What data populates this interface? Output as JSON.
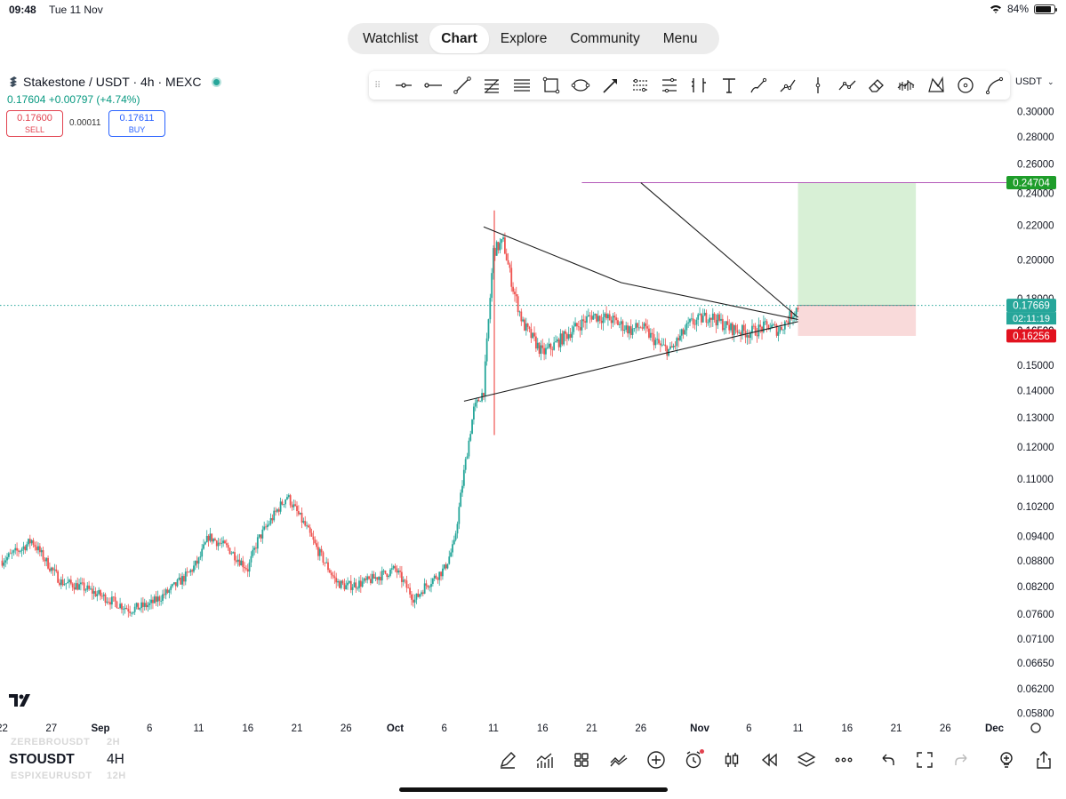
{
  "status": {
    "time": "09:48",
    "date": "Tue 11 Nov",
    "battery": "84%",
    "battery_fraction": 0.84
  },
  "nav": {
    "tabs": [
      "Watchlist",
      "Chart",
      "Explore",
      "Community",
      "Menu"
    ],
    "active": "Chart"
  },
  "symbol": {
    "title": "Stakestone / USDT · 4h · MEXC",
    "price_line": "0.17604 +0.00797 (+4.74%)",
    "sell_price": "0.17600",
    "sell_label": "SELL",
    "spread": "0.00011",
    "buy_price": "0.17611",
    "buy_label": "BUY"
  },
  "currency_selector": "USDT",
  "drawing_tools": [
    "cursor-dot",
    "horizontal-ray",
    "trend-line",
    "fib-retracement",
    "parallel-channel",
    "rectangle",
    "ellipse",
    "arrow-line",
    "date-range",
    "price-range",
    "long-position",
    "text",
    "brush",
    "path",
    "vertical-line",
    "polyline",
    "eraser",
    "volume-profile",
    "xabcd-pattern",
    "circle",
    "curve"
  ],
  "bottom": {
    "symbol": "STOUSDT",
    "timeframe": "4H",
    "ghost_top_symbol": "ZEREBROUSDT",
    "ghost_top_tf": "2H",
    "ghost_bottom_symbol": "ESPIXEURUSDT",
    "ghost_bottom_tf": "12H",
    "tools": [
      "pencil-icon",
      "indicators-icon",
      "layouts-icon",
      "compare-icon",
      "add-icon",
      "alert-icon",
      "candles-icon",
      "replay-icon",
      "layers-icon",
      "more-icon",
      "undo-icon",
      "fullscreen-icon",
      "redo-icon",
      "idea-icon",
      "share-icon"
    ]
  },
  "chart_data": {
    "type": "candlestick",
    "symbol": "Stakestone / USDT",
    "interval": "4h",
    "y_scale": "log",
    "ylim": [
      0.058,
      0.3
    ],
    "y_ticks": [
      "0.30000",
      "0.28000",
      "0.26000",
      "0.24000",
      "0.22000",
      "0.20000",
      "0.18000",
      "0.16500",
      "0.15000",
      "0.14000",
      "0.13000",
      "0.12000",
      "0.11000",
      "0.10200",
      "0.09400",
      "0.08800",
      "0.08200",
      "0.07600",
      "0.07100",
      "0.06650",
      "0.06200",
      "0.05800"
    ],
    "x_ticks": [
      "22",
      "27",
      "Sep",
      "6",
      "11",
      "16",
      "21",
      "26",
      "Oct",
      "6",
      "11",
      "16",
      "21",
      "26",
      "Nov",
      "6",
      "11",
      "16",
      "21",
      "26",
      "Dec"
    ],
    "x_tick_days": [
      -10,
      -5,
      0,
      5,
      10,
      15,
      20,
      25,
      30,
      35,
      40,
      45,
      50,
      55,
      61,
      66,
      71,
      76,
      81,
      86,
      91
    ],
    "date_origin": "2025-09-01",
    "series_close": [
      [
        "2025-08-22",
        0.088
      ],
      [
        "2025-08-24",
        0.091
      ],
      [
        "2025-08-25",
        0.093
      ],
      [
        "2025-08-27",
        0.086
      ],
      [
        "2025-08-28",
        0.083
      ],
      [
        "2025-08-30",
        0.082
      ],
      [
        "2025-09-01",
        0.08
      ],
      [
        "2025-09-03",
        0.078
      ],
      [
        "2025-09-04",
        0.077
      ],
      [
        "2025-09-06",
        0.078
      ],
      [
        "2025-09-08",
        0.081
      ],
      [
        "2025-09-10",
        0.085
      ],
      [
        "2025-09-11",
        0.088
      ],
      [
        "2025-09-12",
        0.094
      ],
      [
        "2025-09-14",
        0.091
      ],
      [
        "2025-09-16",
        0.086
      ],
      [
        "2025-09-17",
        0.093
      ],
      [
        "2025-09-19",
        0.101
      ],
      [
        "2025-09-20",
        0.105
      ],
      [
        "2025-09-22",
        0.096
      ],
      [
        "2025-09-23",
        0.091
      ],
      [
        "2025-09-25",
        0.083
      ],
      [
        "2025-09-26",
        0.082
      ],
      [
        "2025-09-28",
        0.083
      ],
      [
        "2025-09-30",
        0.085
      ],
      [
        "2025-10-01",
        0.086
      ],
      [
        "2025-10-03",
        0.079
      ],
      [
        "2025-10-04",
        0.082
      ],
      [
        "2025-10-06",
        0.086
      ],
      [
        "2025-10-07",
        0.092
      ],
      [
        "2025-10-08",
        0.112
      ],
      [
        "2025-10-09",
        0.133
      ],
      [
        "2025-10-10",
        0.14
      ],
      [
        "2025-10-11",
        0.205
      ],
      [
        "2025-10-12",
        0.21
      ],
      [
        "2025-10-13",
        0.185
      ],
      [
        "2025-10-14",
        0.168
      ],
      [
        "2025-10-16",
        0.155
      ],
      [
        "2025-10-17",
        0.158
      ],
      [
        "2025-10-19",
        0.165
      ],
      [
        "2025-10-21",
        0.172
      ],
      [
        "2025-10-23",
        0.17
      ],
      [
        "2025-10-25",
        0.165
      ],
      [
        "2025-10-26",
        0.167
      ],
      [
        "2025-10-28",
        0.158
      ],
      [
        "2025-10-29",
        0.156
      ],
      [
        "2025-10-31",
        0.168
      ],
      [
        "2025-11-02",
        0.172
      ],
      [
        "2025-11-04",
        0.166
      ],
      [
        "2025-11-06",
        0.164
      ],
      [
        "2025-11-08",
        0.167
      ],
      [
        "2025-11-09",
        0.165
      ],
      [
        "2025-11-11",
        0.176
      ]
    ],
    "current_price": 0.17669,
    "countdown": "02:11:19",
    "price_labels": [
      {
        "value": 0.24704,
        "text": "0.24704",
        "color": "#1e9d2a"
      },
      {
        "value": 0.17669,
        "text": "0.17669",
        "color": "#26a69a"
      },
      {
        "value": 0.16256,
        "text": "0.16256",
        "color": "#e2121f"
      }
    ],
    "hidden_label": "0.16500",
    "long_position": {
      "entry": 0.17669,
      "target": 0.24704,
      "stop": 0.16256,
      "start": "2025-11-11",
      "end": "2025-11-23"
    },
    "target_line": {
      "value": 0.24704,
      "start": "2025-10-20"
    },
    "triangle": {
      "upper": [
        [
          "2025-10-10",
          0.219
        ],
        [
          "2025-10-24",
          0.188
        ],
        [
          "2025-11-11",
          0.17
        ]
      ],
      "lower": [
        [
          "2025-10-08",
          0.136
        ],
        [
          "2025-11-11",
          0.169
        ]
      ]
    },
    "diagonal_line": [
      [
        "2025-10-26",
        0.247
      ],
      [
        "2025-11-11",
        0.171
      ]
    ],
    "spike_candle": {
      "date": "2025-10-11",
      "high": 0.229,
      "low": 0.124
    },
    "colors": {
      "up": "#26a69a",
      "down": "#ef5350",
      "text": "#131722"
    }
  }
}
